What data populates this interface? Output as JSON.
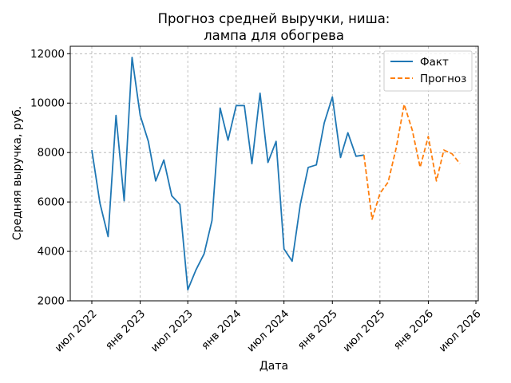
{
  "chart_data": {
    "type": "line",
    "title_line1": "Прогноз средней выручки, ниша:",
    "title_line2": "лампа для обогрева",
    "xlabel": "Дата",
    "ylabel": "Средняя выручка, руб.",
    "ylim": [
      2000,
      12300
    ],
    "y_ticks": [
      2000,
      4000,
      6000,
      8000,
      10000,
      12000
    ],
    "x_ticks": [
      {
        "label": "июл 2022",
        "date": "2022-07-01"
      },
      {
        "label": "янв 2023",
        "date": "2023-01-01"
      },
      {
        "label": "июл 2023",
        "date": "2023-07-01"
      },
      {
        "label": "янв 2024",
        "date": "2024-01-01"
      },
      {
        "label": "июл 2024",
        "date": "2024-07-01"
      },
      {
        "label": "янв 2025",
        "date": "2025-01-01"
      },
      {
        "label": "июл 2025",
        "date": "2025-07-01"
      },
      {
        "label": "янв 2026",
        "date": "2026-01-01"
      },
      {
        "label": "июл 2026",
        "date": "2026-07-01"
      }
    ],
    "grid": true,
    "legend_position": "top-right",
    "series": [
      {
        "name": "Факт",
        "color": "#1f77b4",
        "style": "solid",
        "points": [
          [
            "2022-07-01",
            8100
          ],
          [
            "2022-08-01",
            5950
          ],
          [
            "2022-09-01",
            4600
          ],
          [
            "2022-10-01",
            9500
          ],
          [
            "2022-11-01",
            6050
          ],
          [
            "2022-12-01",
            11850
          ],
          [
            "2023-01-01",
            9500
          ],
          [
            "2023-02-01",
            8450
          ],
          [
            "2023-03-01",
            6850
          ],
          [
            "2023-04-01",
            7700
          ],
          [
            "2023-05-01",
            6250
          ],
          [
            "2023-06-01",
            5900
          ],
          [
            "2023-07-01",
            2450
          ],
          [
            "2023-08-01",
            3250
          ],
          [
            "2023-09-01",
            3900
          ],
          [
            "2023-10-01",
            5250
          ],
          [
            "2023-11-01",
            9800
          ],
          [
            "2023-12-01",
            8500
          ],
          [
            "2024-01-01",
            9900
          ],
          [
            "2024-02-01",
            9900
          ],
          [
            "2024-03-01",
            7550
          ],
          [
            "2024-04-01",
            10400
          ],
          [
            "2024-05-01",
            7600
          ],
          [
            "2024-06-01",
            8450
          ],
          [
            "2024-07-01",
            4100
          ],
          [
            "2024-08-01",
            3600
          ],
          [
            "2024-09-01",
            5900
          ],
          [
            "2024-10-01",
            7400
          ],
          [
            "2024-11-01",
            7500
          ],
          [
            "2024-12-01",
            9200
          ],
          [
            "2025-01-01",
            10250
          ],
          [
            "2025-02-01",
            7800
          ],
          [
            "2025-03-01",
            8800
          ],
          [
            "2025-04-01",
            7850
          ],
          [
            "2025-05-01",
            7900
          ]
        ]
      },
      {
        "name": "Прогноз",
        "color": "#ff7f0e",
        "style": "dashed",
        "points": [
          [
            "2025-05-01",
            7900
          ],
          [
            "2025-06-01",
            5300
          ],
          [
            "2025-07-01",
            6350
          ],
          [
            "2025-08-01",
            6800
          ],
          [
            "2025-09-01",
            8200
          ],
          [
            "2025-10-01",
            9950
          ],
          [
            "2025-11-01",
            8900
          ],
          [
            "2025-12-01",
            7400
          ],
          [
            "2026-01-01",
            8650
          ],
          [
            "2026-02-01",
            6850
          ],
          [
            "2026-03-01",
            8100
          ],
          [
            "2026-04-01",
            7950
          ],
          [
            "2026-05-01",
            7550
          ]
        ]
      }
    ]
  }
}
